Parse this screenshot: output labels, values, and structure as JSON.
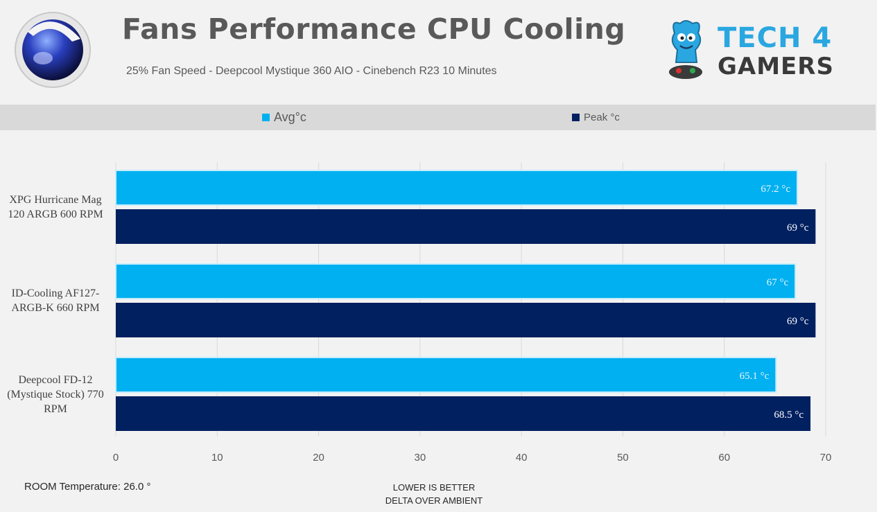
{
  "header": {
    "title": "Fans Performance CPU Cooling",
    "subtitle": "25% Fan Speed - Deepcool Mystique 360 AIO - Cinebench R23 10 Minutes",
    "brand_line1": "TECH 4",
    "brand_line2": "GAMERS",
    "app_logo_icon": "cinema4d-logo-icon",
    "brand_logo_icon": "tech4gamers-mascot-icon"
  },
  "legend": {
    "avg_label": "Avg°c",
    "peak_label": "Peak °c"
  },
  "footer": {
    "room": "ROOM Temperature: 26.0 °",
    "note_line1": "LOWER IS BETTER",
    "note_line2": "DELTA OVER AMBIENT"
  },
  "colors": {
    "avg": "#00b0f0",
    "peak": "#002060",
    "background": "#f2f2f2",
    "legend_band": "#d9d9d9",
    "gridline": "#d9d9d9"
  },
  "chart_data": {
    "type": "bar",
    "orientation": "horizontal",
    "categories": [
      "XPG Hurricane Mag 120 ARGB 600 RPM",
      "ID-Cooling AF127-ARGB-K 660 RPM",
      "Deepcool FD-12 (Mystique Stock) 770 RPM"
    ],
    "category_lines": [
      [
        "XPG Hurricane Mag",
        "120 ARGB 600 RPM"
      ],
      [
        "ID-Cooling AF127-",
        "ARGB-K 660 RPM"
      ],
      [
        "Deepcool FD-12",
        "(Mystique Stock) 770",
        "RPM"
      ]
    ],
    "series": [
      {
        "name": "Avg°c",
        "values": [
          67.2,
          67,
          65.1
        ],
        "labels": [
          "67.2 °c",
          "67 °c",
          "65.1 °c"
        ]
      },
      {
        "name": "Peak °c",
        "values": [
          69,
          69,
          68.5
        ],
        "labels": [
          "69 °c",
          "69 °c",
          "68.5 °c"
        ]
      }
    ],
    "xlim": [
      0,
      70
    ],
    "xticks": [
      0,
      10,
      20,
      30,
      40,
      50,
      60,
      70
    ],
    "grid": true,
    "legend_position": "top"
  }
}
